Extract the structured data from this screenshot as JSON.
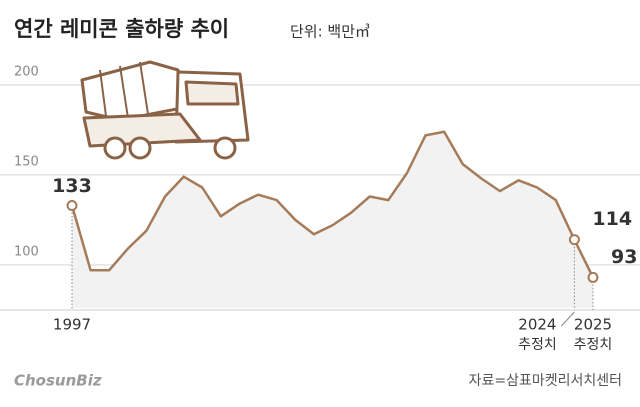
{
  "chart_data": {
    "type": "line",
    "title": "연간 레미콘 출하량 추이",
    "subtitle": "단위: 백만㎥",
    "categories": [
      "1997",
      null,
      null,
      null,
      null,
      null,
      null,
      null,
      null,
      null,
      null,
      null,
      null,
      null,
      null,
      null,
      null,
      null,
      null,
      null,
      null,
      null,
      null,
      null,
      null,
      null,
      null,
      "2024",
      "2025"
    ],
    "category_notes": [
      null,
      null,
      null,
      null,
      null,
      null,
      null,
      null,
      null,
      null,
      null,
      null,
      null,
      null,
      null,
      null,
      null,
      null,
      null,
      null,
      null,
      null,
      null,
      null,
      null,
      null,
      null,
      "추정치",
      "추정치"
    ],
    "values": [
      133,
      97,
      97,
      109,
      119,
      138,
      149,
      143,
      127,
      134,
      139,
      136,
      125,
      117,
      122,
      129,
      138,
      136,
      151,
      172,
      174,
      156,
      148,
      141,
      147,
      143,
      136,
      114,
      93
    ],
    "value_labels": [
      "133",
      null,
      null,
      null,
      null,
      null,
      null,
      null,
      null,
      null,
      null,
      null,
      null,
      null,
      null,
      null,
      null,
      null,
      null,
      null,
      null,
      null,
      null,
      null,
      null,
      null,
      null,
      "114",
      "93"
    ],
    "color": "#a57b5a",
    "ylim": [
      76,
      200
    ],
    "yticks": [
      100,
      150,
      200
    ],
    "grid": true,
    "source": "자료=삼표마켓리서치센터",
    "logo": "ChosunBiz"
  }
}
